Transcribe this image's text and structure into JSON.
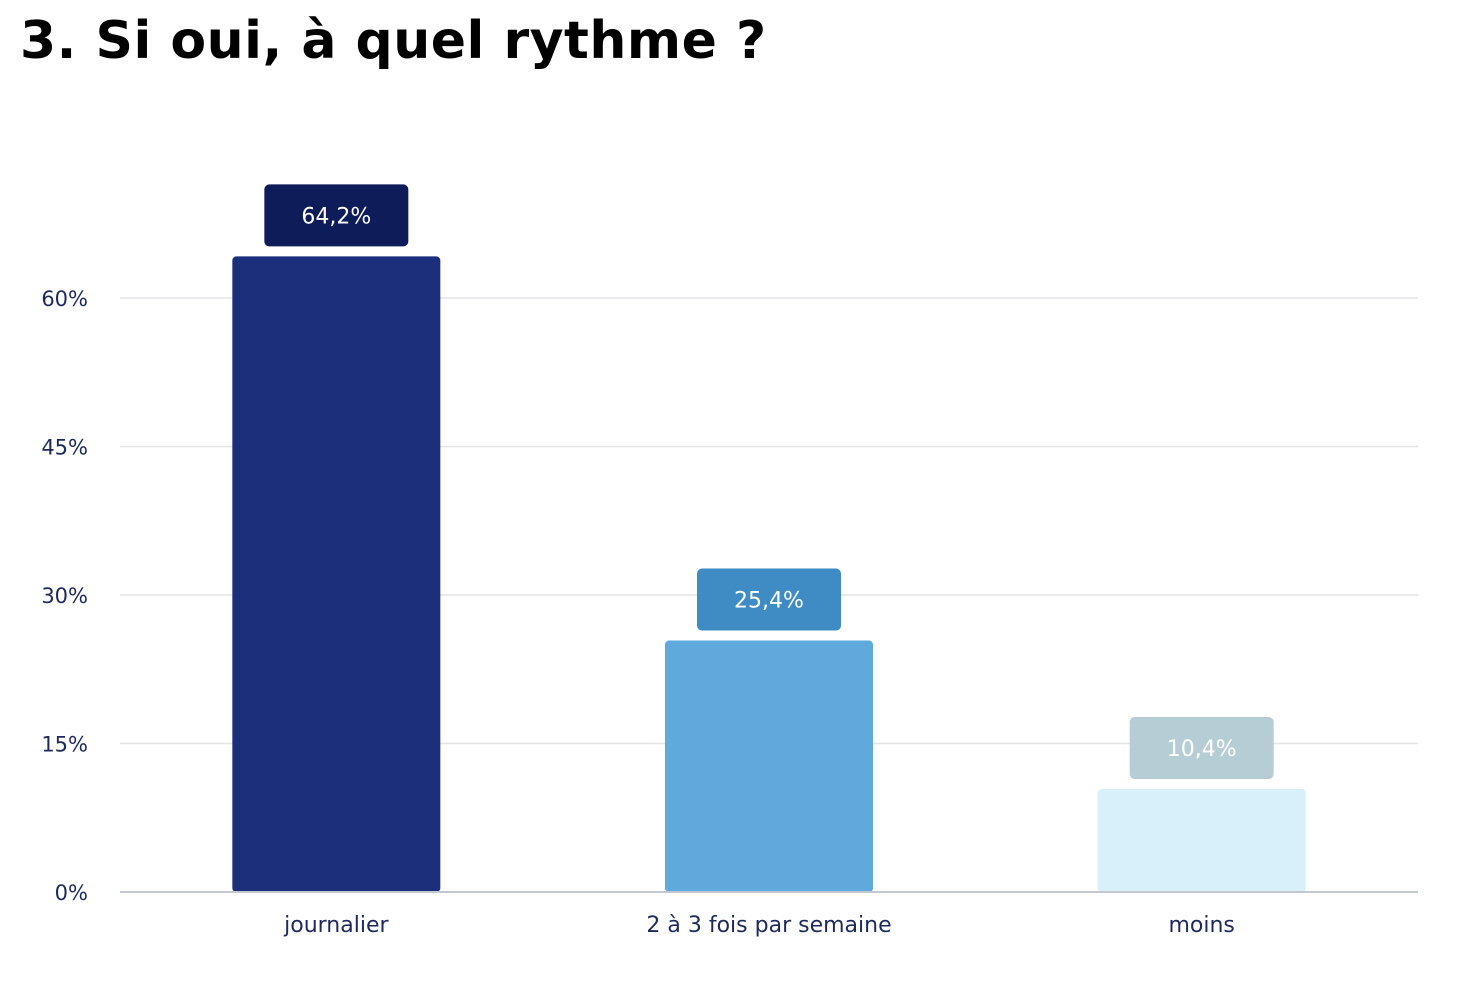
{
  "title": "3. Si oui, à quel rythme ?",
  "chart_data": {
    "type": "bar",
    "title": "3. Si oui, à quel rythme ?",
    "xlabel": "",
    "ylabel": "",
    "categories": [
      "journalier",
      "2 à 3 fois par semaine",
      "moins"
    ],
    "values": [
      64.2,
      25.4,
      10.4
    ],
    "value_labels": [
      "64,2%",
      "25,4%",
      "10,4%"
    ],
    "ylim": [
      0,
      60
    ],
    "yticks": [
      0,
      15,
      30,
      45,
      60
    ],
    "ytick_labels": [
      "0%",
      "15%",
      "30%",
      "45%",
      "60%"
    ],
    "grid": true,
    "legend": "none",
    "bar_colors": [
      "#1b2f7a",
      "#5fa9dc",
      "#d7f0f9"
    ],
    "label_box_colors": [
      "#0e1c5a",
      "#3f8bc3",
      "#b7cdd5"
    ],
    "gridline_color": "#e2e4e8",
    "baseline_color": "#c3c8d2",
    "text_color": "#1e2a5c"
  }
}
